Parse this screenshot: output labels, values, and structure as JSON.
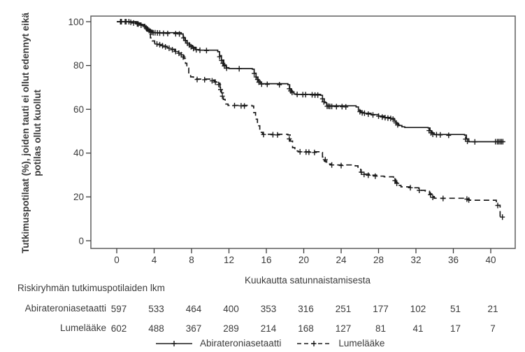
{
  "axes": {
    "y_label_line1": "Tutkimuspotilaat (%), joiden tauti ei ollut edennyt eikä",
    "y_label_line2": "potilas ollut kuollut",
    "x_label": "Kuukautta satunnaistamisesta",
    "y_ticks": [
      0,
      20,
      40,
      60,
      80,
      100
    ],
    "x_ticks": [
      0,
      4,
      8,
      12,
      16,
      20,
      24,
      28,
      32,
      36,
      40
    ]
  },
  "chart_data": {
    "type": "line",
    "subtype": "kaplan-meier-step",
    "title": "",
    "xlabel": "Kuukautta satunnaistamisesta",
    "ylabel": "Tutkimuspotilaat (%), joiden tauti ei ollut edennyt eikä potilas ollut kuollut",
    "xlim": [
      -2.8,
      42.6
    ],
    "ylim": [
      0,
      100
    ],
    "grid": false,
    "legend_position": "bottom",
    "series": [
      {
        "name": "Abirateroniasetaatti",
        "style": "solid",
        "color": "#1a1a1a",
        "steps": [
          [
            0,
            100
          ],
          [
            2.0,
            99.4
          ],
          [
            2.5,
            98.7
          ],
          [
            2.9,
            98
          ],
          [
            3.1,
            97.3
          ],
          [
            3.3,
            96.5
          ],
          [
            3.5,
            95.8
          ],
          [
            3.8,
            95
          ],
          [
            6.9,
            94.4
          ],
          [
            7.1,
            92.8
          ],
          [
            7.3,
            91.4
          ],
          [
            7.5,
            90.2
          ],
          [
            7.8,
            89.2
          ],
          [
            8.1,
            88.3
          ],
          [
            8.45,
            87.3
          ],
          [
            8.8,
            87
          ],
          [
            10.8,
            86.3
          ],
          [
            11.0,
            84.5
          ],
          [
            11.2,
            82.5
          ],
          [
            11.45,
            80.3
          ],
          [
            11.7,
            79
          ],
          [
            12.0,
            78.6
          ],
          [
            14.5,
            78.3
          ],
          [
            14.7,
            76.5
          ],
          [
            14.9,
            74.6
          ],
          [
            15.1,
            73
          ],
          [
            15.35,
            71.7
          ],
          [
            18.3,
            71.2
          ],
          [
            18.5,
            69.3
          ],
          [
            18.7,
            68
          ],
          [
            18.95,
            67
          ],
          [
            19.2,
            66.8
          ],
          [
            21.8,
            66.4
          ],
          [
            22.0,
            64.8
          ],
          [
            22.2,
            63
          ],
          [
            22.45,
            61.6
          ],
          [
            25.6,
            61.1
          ],
          [
            25.85,
            59.5
          ],
          [
            26.1,
            58.6
          ],
          [
            26.5,
            58.2
          ],
          [
            27.2,
            57.6
          ],
          [
            28.0,
            56.9
          ],
          [
            28.6,
            56.3
          ],
          [
            29.3,
            55.8
          ],
          [
            29.7,
            54.6
          ],
          [
            29.9,
            53.5
          ],
          [
            30.15,
            52.6
          ],
          [
            30.5,
            52
          ],
          [
            30.8,
            51.7
          ],
          [
            33.3,
            51.5
          ],
          [
            33.5,
            50.2
          ],
          [
            33.7,
            49.2
          ],
          [
            33.95,
            48.5
          ],
          [
            37.2,
            48.2
          ],
          [
            37.4,
            46.5
          ],
          [
            37.65,
            45.2
          ],
          [
            41.4,
            45.2
          ]
        ],
        "censors": [
          [
            0.4,
            100
          ],
          [
            0.9,
            100
          ],
          [
            1.3,
            100
          ],
          [
            1.8,
            99.4
          ],
          [
            2.2,
            99
          ],
          [
            2.6,
            98.4
          ],
          [
            3.0,
            97.8
          ],
          [
            3.15,
            97.2
          ],
          [
            3.3,
            96.6
          ],
          [
            3.45,
            96
          ],
          [
            3.6,
            95.6
          ],
          [
            3.75,
            95.2
          ],
          [
            3.9,
            95
          ],
          [
            4.1,
            95
          ],
          [
            4.35,
            94.9
          ],
          [
            4.6,
            94.8
          ],
          [
            5.0,
            94.7
          ],
          [
            5.45,
            94.6
          ],
          [
            6.3,
            94.5
          ],
          [
            6.7,
            94.4
          ],
          [
            7.15,
            92.6
          ],
          [
            7.35,
            91.4
          ],
          [
            7.55,
            90.2
          ],
          [
            7.75,
            89.4
          ],
          [
            7.95,
            88.6
          ],
          [
            8.2,
            87.8
          ],
          [
            8.5,
            87.2
          ],
          [
            8.9,
            87
          ],
          [
            9.6,
            86.8
          ],
          [
            11.0,
            84
          ],
          [
            11.2,
            82.3
          ],
          [
            11.35,
            81
          ],
          [
            11.5,
            79.8
          ],
          [
            11.75,
            78.8
          ],
          [
            13.1,
            78.5
          ],
          [
            14.7,
            76.4
          ],
          [
            14.9,
            74.8
          ],
          [
            15.05,
            73.6
          ],
          [
            15.2,
            72.4
          ],
          [
            15.5,
            71.5
          ],
          [
            16.1,
            71.4
          ],
          [
            17.4,
            71.2
          ],
          [
            18.45,
            69.4
          ],
          [
            18.6,
            68.4
          ],
          [
            18.75,
            67.7
          ],
          [
            19.3,
            66.8
          ],
          [
            19.9,
            66.7
          ],
          [
            20.2,
            66.7
          ],
          [
            20.9,
            66.6
          ],
          [
            21.2,
            66.5
          ],
          [
            21.5,
            66.5
          ],
          [
            22.0,
            64.8
          ],
          [
            22.15,
            63.4
          ],
          [
            22.5,
            61.4
          ],
          [
            22.65,
            61.4
          ],
          [
            22.8,
            61.3
          ],
          [
            23.0,
            61.3
          ],
          [
            23.5,
            61.2
          ],
          [
            24.1,
            61.2
          ],
          [
            24.5,
            61.1
          ],
          [
            26.0,
            58.9
          ],
          [
            26.25,
            58.4
          ],
          [
            26.5,
            58.2
          ],
          [
            26.9,
            57.8
          ],
          [
            27.4,
            57.4
          ],
          [
            28.0,
            56.9
          ],
          [
            28.4,
            56.5
          ],
          [
            28.7,
            56.2
          ],
          [
            29.0,
            56
          ],
          [
            29.3,
            55.8
          ],
          [
            29.55,
            55.5
          ],
          [
            29.85,
            53.8
          ],
          [
            30.05,
            52.9
          ],
          [
            33.4,
            50.3
          ],
          [
            33.6,
            49.3
          ],
          [
            33.8,
            48.6
          ],
          [
            34.2,
            48.4
          ],
          [
            34.6,
            48.3
          ],
          [
            35.5,
            48.1
          ],
          [
            37.3,
            46.4
          ],
          [
            37.5,
            45.4
          ],
          [
            38.3,
            45.1
          ],
          [
            40.5,
            45.2
          ],
          [
            40.7,
            45.2
          ],
          [
            40.85,
            45.2
          ],
          [
            41.0,
            45.2
          ],
          [
            41.15,
            45.2
          ],
          [
            41.3,
            45.2
          ]
        ]
      },
      {
        "name": "Lumelääke",
        "style": "dashed",
        "color": "#1a1a1a",
        "steps": [
          [
            0,
            100
          ],
          [
            2.1,
            99.2
          ],
          [
            2.7,
            98.3
          ],
          [
            3.0,
            97.2
          ],
          [
            3.2,
            95.8
          ],
          [
            3.4,
            94.2
          ],
          [
            3.6,
            92.6
          ],
          [
            3.8,
            91.2
          ],
          [
            4.05,
            90.2
          ],
          [
            4.4,
            89.6
          ],
          [
            5.0,
            88.8
          ],
          [
            5.4,
            88.1
          ],
          [
            5.8,
            87.4
          ],
          [
            6.2,
            86.6
          ],
          [
            6.6,
            85.7
          ],
          [
            6.95,
            84.6
          ],
          [
            7.2,
            83.2
          ],
          [
            7.35,
            81
          ],
          [
            7.5,
            78.8
          ],
          [
            7.7,
            76.6
          ],
          [
            7.9,
            74.8
          ],
          [
            8.2,
            73.8
          ],
          [
            10.1,
            73.4
          ],
          [
            10.45,
            72.6
          ],
          [
            10.8,
            71.9
          ],
          [
            11.05,
            70
          ],
          [
            11.2,
            67.5
          ],
          [
            11.4,
            64.5
          ],
          [
            11.6,
            62.4
          ],
          [
            11.9,
            61.8
          ],
          [
            14.45,
            61.5
          ],
          [
            14.65,
            58.5
          ],
          [
            14.85,
            55.5
          ],
          [
            15.05,
            52.5
          ],
          [
            15.3,
            49.5
          ],
          [
            15.6,
            48.6
          ],
          [
            18.3,
            48.3
          ],
          [
            18.55,
            45.5
          ],
          [
            18.8,
            42.5
          ],
          [
            19.05,
            41
          ],
          [
            19.4,
            40.6
          ],
          [
            21.8,
            40.3
          ],
          [
            22.0,
            38.2
          ],
          [
            22.2,
            36.4
          ],
          [
            22.45,
            35
          ],
          [
            22.9,
            34.6
          ],
          [
            25.5,
            34.2
          ],
          [
            25.8,
            32.6
          ],
          [
            26.1,
            31.2
          ],
          [
            26.4,
            30.4
          ],
          [
            27.0,
            29.9
          ],
          [
            27.8,
            29.5
          ],
          [
            28.6,
            29.2
          ],
          [
            29.6,
            28
          ],
          [
            29.85,
            26.6
          ],
          [
            30.1,
            25.3
          ],
          [
            30.4,
            24.6
          ],
          [
            31.4,
            24.2
          ],
          [
            32.3,
            23
          ],
          [
            33.0,
            22.6
          ],
          [
            33.45,
            21.4
          ],
          [
            33.7,
            20.2
          ],
          [
            33.95,
            19.4
          ],
          [
            37.4,
            19.1
          ],
          [
            37.7,
            18.5
          ],
          [
            40.6,
            16.2
          ],
          [
            41.0,
            11
          ],
          [
            41.3,
            10.8
          ]
        ],
        "censors": [
          [
            0.5,
            100
          ],
          [
            1.0,
            100
          ],
          [
            1.5,
            99.7
          ],
          [
            2.3,
            98.9
          ],
          [
            4.3,
            89.8
          ],
          [
            4.6,
            89.5
          ],
          [
            4.9,
            89
          ],
          [
            5.2,
            88.5
          ],
          [
            5.6,
            87.9
          ],
          [
            5.95,
            87.2
          ],
          [
            6.3,
            86.4
          ],
          [
            6.65,
            85.6
          ],
          [
            6.9,
            84.9
          ],
          [
            7.1,
            83.9
          ],
          [
            8.6,
            73.6
          ],
          [
            9.4,
            73.5
          ],
          [
            10.2,
            73
          ],
          [
            10.55,
            72.4
          ],
          [
            10.9,
            71.3
          ],
          [
            11.1,
            69
          ],
          [
            11.3,
            66
          ],
          [
            12.6,
            61.7
          ],
          [
            13.3,
            61.6
          ],
          [
            13.65,
            61.5
          ],
          [
            15.7,
            48.5
          ],
          [
            16.7,
            48.4
          ],
          [
            17.2,
            48.3
          ],
          [
            18.45,
            46.5
          ],
          [
            19.6,
            40.6
          ],
          [
            20.25,
            40.5
          ],
          [
            20.55,
            40.4
          ],
          [
            21.15,
            40.3
          ],
          [
            22.3,
            37
          ],
          [
            23.0,
            34.6
          ],
          [
            24.0,
            34.3
          ],
          [
            26.15,
            31.3
          ],
          [
            26.45,
            30.3
          ],
          [
            26.9,
            29.9
          ],
          [
            27.65,
            29.5
          ],
          [
            29.75,
            27.4
          ],
          [
            29.95,
            26.2
          ],
          [
            31.4,
            24.2
          ],
          [
            32.35,
            23
          ],
          [
            33.55,
            21
          ],
          [
            33.8,
            19.8
          ],
          [
            34.9,
            19.3
          ],
          [
            37.45,
            19
          ],
          [
            37.65,
            18.6
          ],
          [
            40.75,
            16.1
          ],
          [
            41.25,
            10.8
          ]
        ]
      }
    ]
  },
  "risk_table": {
    "header": "Riskiryhmän tutkimuspotilaiden lkm",
    "timepoints": [
      0,
      4,
      8,
      12,
      16,
      20,
      24,
      28,
      32,
      36,
      40
    ],
    "rows": [
      {
        "label": "Abirateroniasetaatti",
        "counts": [
          597,
          533,
          464,
          400,
          353,
          316,
          251,
          177,
          102,
          51,
          21
        ]
      },
      {
        "label": "Lumelääke",
        "counts": [
          602,
          488,
          367,
          289,
          214,
          168,
          127,
          81,
          41,
          17,
          7
        ]
      }
    ]
  },
  "legend": {
    "items": [
      {
        "label": "Abirateroniasetaatti",
        "style": "solid"
      },
      {
        "label": "Lumelääke",
        "style": "dashed"
      }
    ]
  },
  "colors": {
    "curve": "#1a1a1a",
    "frame": "#5f5f5f",
    "text": "#3b3b3b",
    "background": "#ffffff"
  }
}
